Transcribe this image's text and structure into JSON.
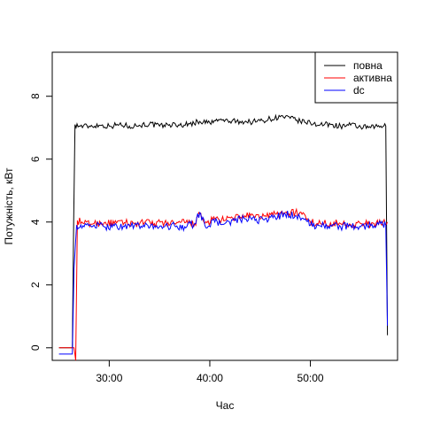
{
  "chart_data": {
    "type": "line",
    "title": "",
    "xlabel": "Час",
    "ylabel": "Потужність, кВт",
    "x_unit": "minutes",
    "xlim": [
      "24:20",
      "58:40"
    ],
    "ylim": [
      -0.4,
      9.4
    ],
    "x_ticks": [
      "30:00",
      "40:00",
      "50:00"
    ],
    "y_ticks": [
      0,
      2,
      4,
      6,
      8
    ],
    "grid": false,
    "legend_position": "top-right",
    "series": [
      {
        "name": "повна",
        "color": "#000000",
        "points": [
          [
            "25:00",
            0.0
          ],
          [
            "26:20",
            0.0
          ],
          [
            "26:28",
            4.0
          ],
          [
            "26:36",
            7.1
          ],
          [
            "27:00",
            7.05
          ],
          [
            "28:00",
            7.05
          ],
          [
            "29:00",
            7.08
          ],
          [
            "30:00",
            7.05
          ],
          [
            "31:00",
            7.1
          ],
          [
            "32:00",
            7.05
          ],
          [
            "33:00",
            7.08
          ],
          [
            "34:00",
            7.12
          ],
          [
            "35:00",
            7.05
          ],
          [
            "36:00",
            7.1
          ],
          [
            "37:00",
            7.08
          ],
          [
            "38:00",
            7.12
          ],
          [
            "39:00",
            7.2
          ],
          [
            "40:00",
            7.15
          ],
          [
            "41:00",
            7.25
          ],
          [
            "42:00",
            7.2
          ],
          [
            "43:00",
            7.2
          ],
          [
            "44:00",
            7.18
          ],
          [
            "45:00",
            7.22
          ],
          [
            "46:00",
            7.28
          ],
          [
            "47:00",
            7.35
          ],
          [
            "48:00",
            7.3
          ],
          [
            "49:00",
            7.2
          ],
          [
            "50:00",
            7.15
          ],
          [
            "51:00",
            7.1
          ],
          [
            "52:00",
            7.1
          ],
          [
            "53:00",
            7.05
          ],
          [
            "54:00",
            7.08
          ],
          [
            "55:00",
            7.02
          ],
          [
            "56:00",
            7.0
          ],
          [
            "57:00",
            7.05
          ],
          [
            "57:30",
            7.05
          ],
          [
            "57:40",
            0.4
          ]
        ]
      },
      {
        "name": "активна",
        "color": "#ff0000",
        "points": [
          [
            "25:00",
            0.0
          ],
          [
            "26:30",
            0.0
          ],
          [
            "26:40",
            -0.4
          ],
          [
            "26:50",
            4.05
          ],
          [
            "27:30",
            3.95
          ],
          [
            "28:30",
            3.95
          ],
          [
            "29:30",
            3.98
          ],
          [
            "30:30",
            3.95
          ],
          [
            "31:30",
            3.98
          ],
          [
            "32:30",
            3.95
          ],
          [
            "33:30",
            3.98
          ],
          [
            "34:30",
            3.95
          ],
          [
            "35:30",
            3.98
          ],
          [
            "36:30",
            3.95
          ],
          [
            "37:30",
            3.98
          ],
          [
            "38:30",
            3.95
          ],
          [
            "39:00",
            4.25
          ],
          [
            "39:30",
            3.95
          ],
          [
            "40:30",
            4.1
          ],
          [
            "41:30",
            4.05
          ],
          [
            "42:30",
            4.15
          ],
          [
            "43:30",
            4.2
          ],
          [
            "44:30",
            4.15
          ],
          [
            "45:30",
            4.2
          ],
          [
            "46:30",
            4.25
          ],
          [
            "47:30",
            4.3
          ],
          [
            "48:30",
            4.3
          ],
          [
            "49:30",
            4.2
          ],
          [
            "50:00",
            4.0
          ],
          [
            "51:00",
            3.95
          ],
          [
            "52:00",
            3.98
          ],
          [
            "53:00",
            3.95
          ],
          [
            "54:00",
            3.92
          ],
          [
            "55:00",
            3.95
          ],
          [
            "56:00",
            3.92
          ],
          [
            "57:00",
            3.95
          ],
          [
            "57:40",
            4.0
          ]
        ]
      },
      {
        "name": "dc",
        "color": "#0000ff",
        "points": [
          [
            "25:00",
            -0.2
          ],
          [
            "26:20",
            -0.2
          ],
          [
            "26:30",
            2.5
          ],
          [
            "26:45",
            3.9
          ],
          [
            "27:30",
            3.85
          ],
          [
            "28:30",
            3.9
          ],
          [
            "29:30",
            3.85
          ],
          [
            "30:30",
            3.88
          ],
          [
            "31:30",
            3.85
          ],
          [
            "32:30",
            3.9
          ],
          [
            "33:30",
            3.85
          ],
          [
            "34:30",
            3.88
          ],
          [
            "35:30",
            3.85
          ],
          [
            "36:30",
            3.88
          ],
          [
            "37:30",
            3.85
          ],
          [
            "38:30",
            3.95
          ],
          [
            "39:00",
            4.3
          ],
          [
            "39:30",
            3.9
          ],
          [
            "40:30",
            4.0
          ],
          [
            "41:30",
            3.95
          ],
          [
            "42:30",
            4.05
          ],
          [
            "43:30",
            4.1
          ],
          [
            "44:30",
            4.05
          ],
          [
            "45:30",
            4.1
          ],
          [
            "46:30",
            4.15
          ],
          [
            "47:30",
            4.25
          ],
          [
            "48:30",
            4.2
          ],
          [
            "49:30",
            4.1
          ],
          [
            "50:00",
            3.9
          ],
          [
            "51:00",
            3.88
          ],
          [
            "52:00",
            3.9
          ],
          [
            "53:00",
            3.85
          ],
          [
            "54:00",
            3.88
          ],
          [
            "55:00",
            3.85
          ],
          [
            "56:00",
            3.88
          ],
          [
            "57:00",
            3.95
          ],
          [
            "57:30",
            3.9
          ],
          [
            "57:40",
            0.7
          ]
        ]
      }
    ]
  }
}
